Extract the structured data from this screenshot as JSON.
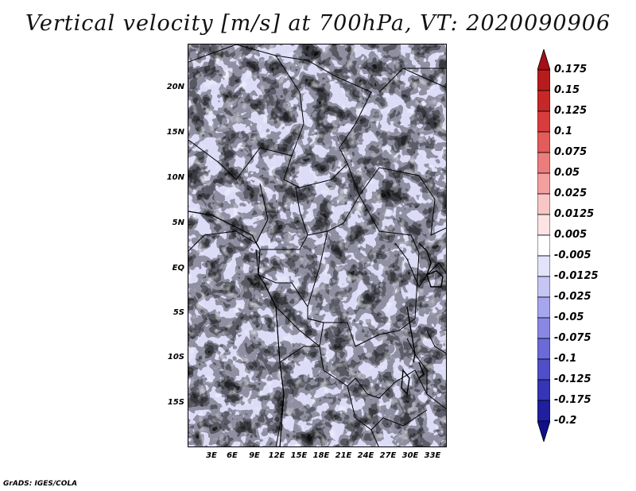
{
  "title": "Vertical velocity [m/s] at 700hPa, VT: 2020090906",
  "lat_labels": [
    "20N",
    "15N",
    "10N",
    "5N",
    "EQ",
    "5S",
    "10S",
    "15S"
  ],
  "lon_labels": [
    "3E",
    "6E",
    "9E",
    "12E",
    "15E",
    "18E",
    "21E",
    "24E",
    "27E",
    "30E",
    "33E"
  ],
  "colorbar": {
    "labels": [
      "0.175",
      "0.15",
      "0.125",
      "0.1",
      "0.075",
      "0.05",
      "0.025",
      "0.0125",
      "0.005",
      "-0.005",
      "-0.0125",
      "-0.025",
      "-0.05",
      "-0.075",
      "-0.1",
      "-0.125",
      "-0.175",
      "-0.2"
    ],
    "colors": [
      "#a50f15",
      "#b71c1c",
      "#c62828",
      "#d93c3c",
      "#e35b5b",
      "#ec7d7d",
      "#f4a0a0",
      "#f9c6c6",
      "#fde3e3",
      "#ffffff",
      "#e3e3fb",
      "#c6c6f5",
      "#a6a6ee",
      "#8888e4",
      "#6a6ad8",
      "#4f4fca",
      "#3535b6",
      "#1f1fa0",
      "#10108a"
    ]
  },
  "credit": "GrADS: IGES/COLA"
}
